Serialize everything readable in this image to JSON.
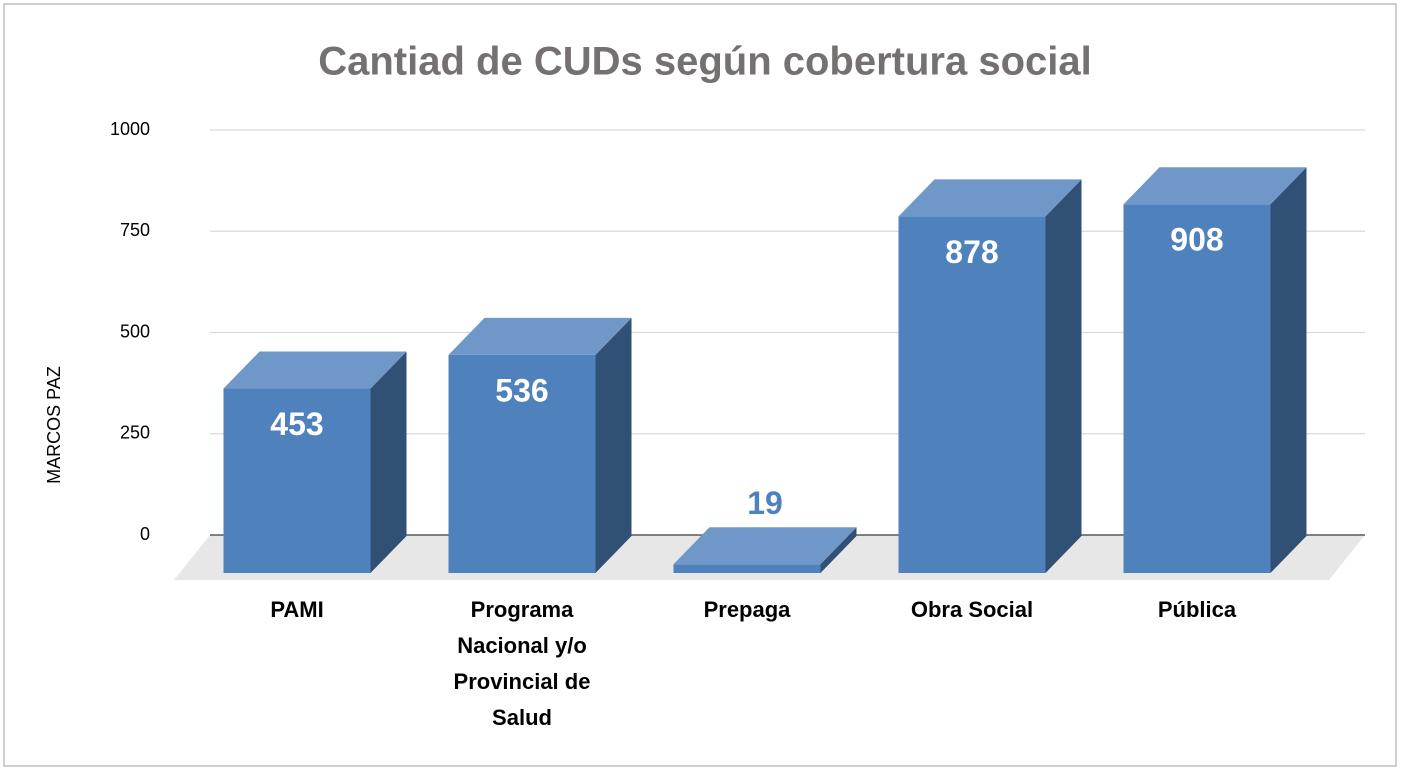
{
  "chart_data": {
    "type": "bar3d",
    "title": "Cantiad de CUDs según cobertura social",
    "y_label": "MARCOS PAZ",
    "categories": [
      "PAMI",
      "Programa Nacional y/o Provincial de Salud",
      "Prepaga",
      "Obra Social",
      "Pública"
    ],
    "values": [
      453,
      536,
      19,
      878,
      908
    ],
    "color": "#4f81bd",
    "ylim": [
      0,
      1000
    ],
    "yticks": [
      0,
      250,
      500,
      750,
      1000
    ],
    "grid": true
  }
}
